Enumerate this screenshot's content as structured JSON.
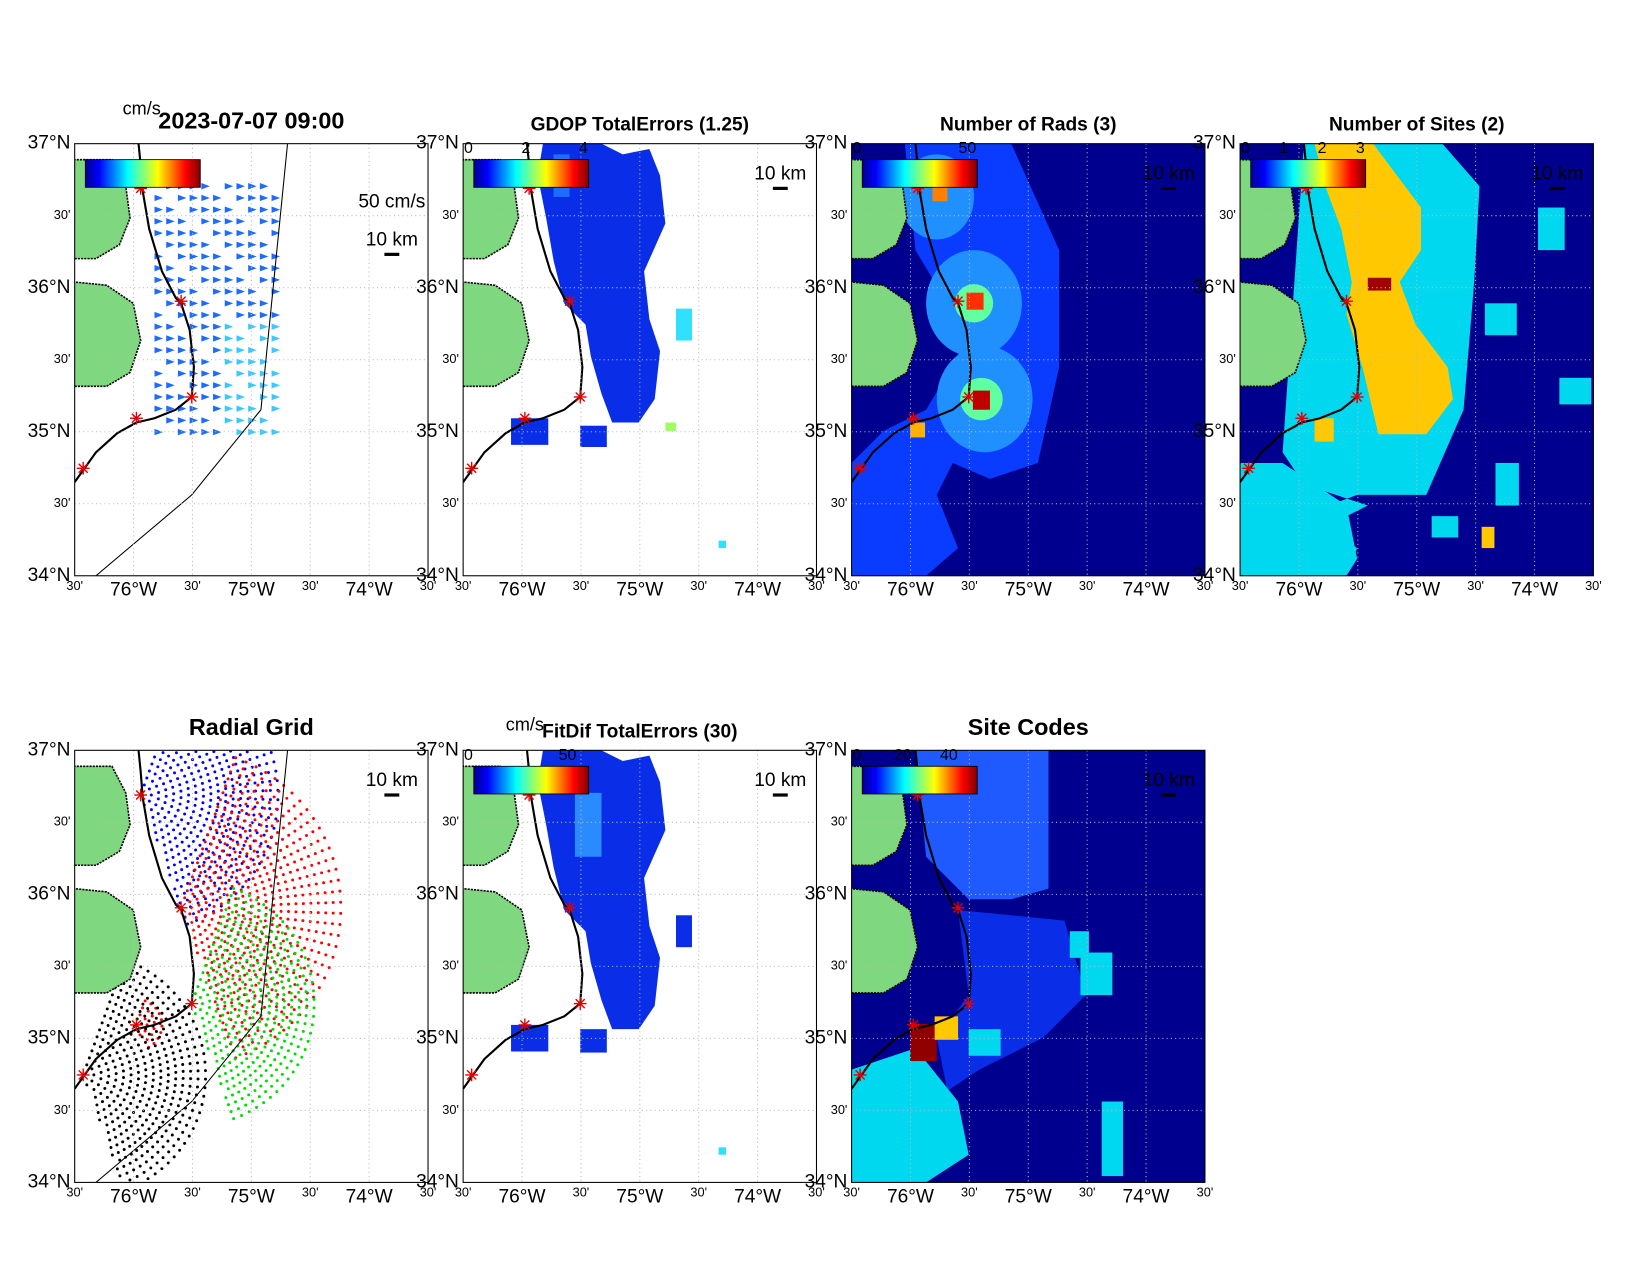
{
  "panels": [
    {
      "title": "2023-07-07 09:00",
      "colorbar_unit": "cm/s",
      "scale_speed": "50 cm/s",
      "scale_distance": "10 km"
    },
    {
      "title": "GDOP TotalErrors (1.25)",
      "clim": [
        0,
        4
      ],
      "colorbar_ticks": [
        0,
        2,
        4
      ],
      "scale_distance": "10 km"
    },
    {
      "title": "Number of Rads (3)",
      "clim": [
        0,
        52
      ],
      "colorbar_ticks": [
        0,
        50
      ],
      "scale_distance": "10 km"
    },
    {
      "title": "Number of Sites (2)",
      "clim": [
        0,
        3
      ],
      "colorbar_ticks": [
        0,
        1,
        2,
        3
      ],
      "scale_distance": "10 km"
    },
    {
      "title": "Radial Grid",
      "scale_distance": "10 km"
    },
    {
      "title": "FitDif TotalErrors (30)",
      "colorbar_unit": "cm/s",
      "clim": [
        0,
        58
      ],
      "colorbar_ticks": [
        0,
        50
      ],
      "scale_distance": "10 km"
    },
    {
      "title": "Site Codes",
      "clim": [
        0,
        50
      ],
      "colorbar_ticks": [
        0,
        20,
        40
      ],
      "scale_distance": "10 km"
    }
  ],
  "lat_labels": [
    "37°N",
    "30'",
    "36°N",
    "30'",
    "35°N",
    "30'",
    "34°N"
  ],
  "lon_labels": [
    "30'",
    "76°W",
    "30'",
    "75°W",
    "30'",
    "74°W",
    "30'"
  ]
}
